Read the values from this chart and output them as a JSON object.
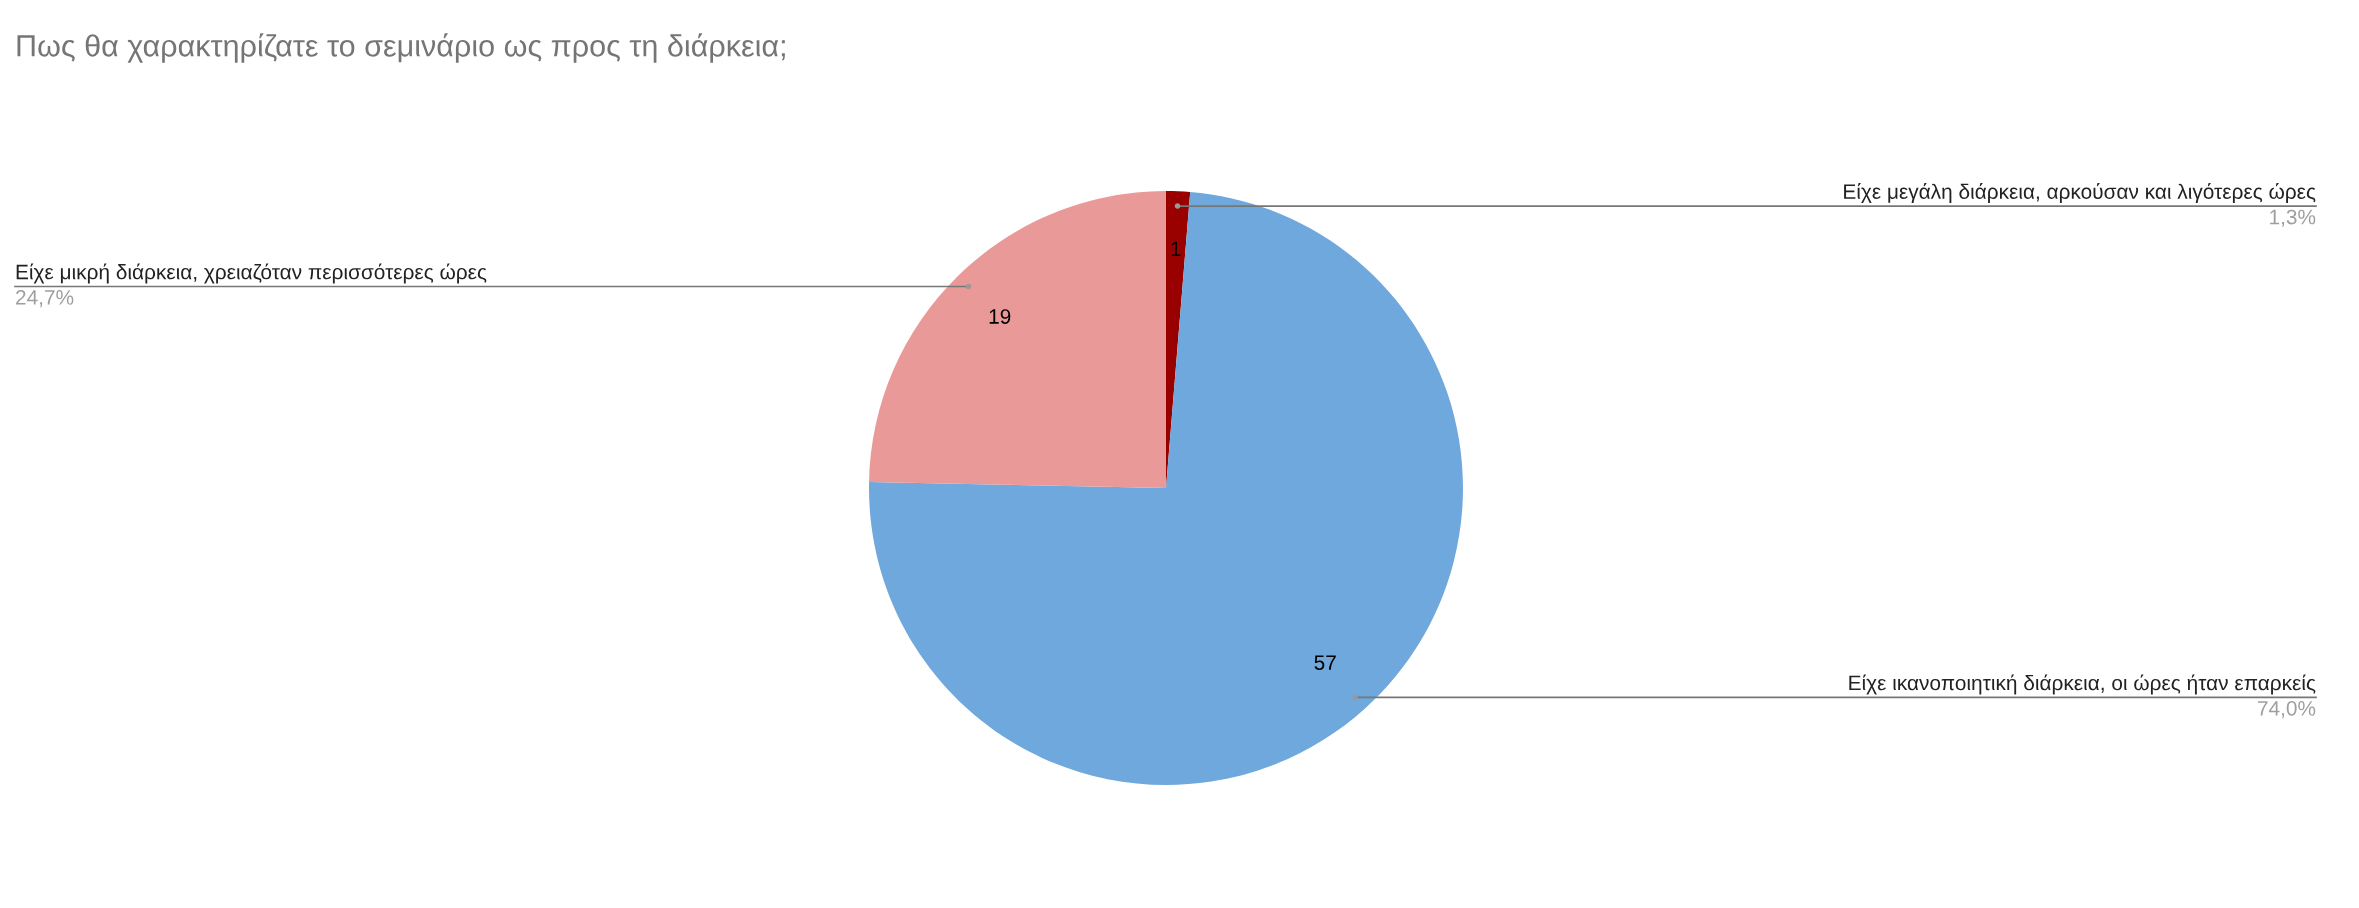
{
  "chart_data": {
    "type": "pie",
    "title": "Πως θα χαρακτηρίζατε το σεμινάριο ως προς τη διάρκεια;",
    "categories": [
      "Είχε μεγάλη διάρκεια, αρκούσαν και λιγότερες ώρες",
      "Είχε ικανοποιητική διάρκεια, οι ώρες ήταν επαρκείς",
      "Είχε μικρή διάρκεια, χρειαζόταν περισσότερες ώρες"
    ],
    "values": [
      1,
      57,
      19
    ],
    "colors": [
      "#990000",
      "#6fa8dc",
      "#ea9999"
    ],
    "data_labels": true,
    "annotations": [
      "1,3%",
      "74,0%",
      "24,7%"
    ]
  }
}
